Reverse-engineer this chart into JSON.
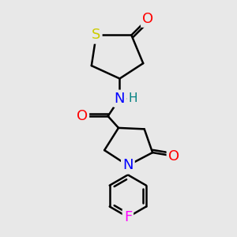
{
  "bg_color": "#e8e8e8",
  "atom_colors": {
    "S": "#cccc00",
    "N": "#0000ff",
    "O": "#ff0000",
    "F": "#ff00ff",
    "C": "#000000",
    "H": "#008080"
  },
  "bond_color": "#000000",
  "bond_width": 1.8,
  "font_size_atoms": 13,
  "font_size_small": 11
}
